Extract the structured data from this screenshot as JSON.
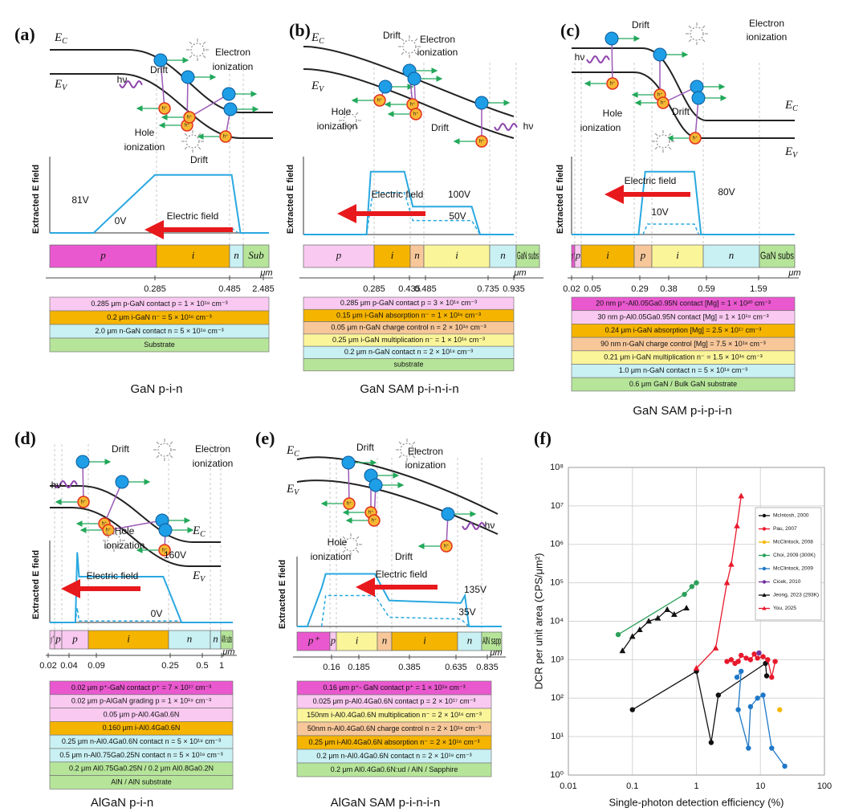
{
  "hole_symbol": "h⁺",
  "panels": [
    {
      "label": "(a)",
      "caption": "GaN p-i-n",
      "band_labels": [
        {
          "main": "E",
          "sub": "C"
        },
        {
          "main": "E",
          "sub": "V"
        }
      ],
      "annotations": [
        "Drift",
        "Electron",
        "ionization",
        "hν",
        "Hole",
        "ionization",
        "Drift"
      ],
      "y_axis_label": "Extracted E field",
      "field_labels": [
        "81V",
        "0V",
        "Electric field"
      ],
      "layers": [
        {
          "label": "p",
          "color": "#e958cf"
        },
        {
          "label": "i",
          "color": "#f5b400"
        },
        {
          "label": "n",
          "color": "#c9f0f3"
        },
        {
          "label": "Sub",
          "color": "#b6e59a"
        }
      ],
      "ticks": [
        "0.285",
        "0.485",
        "2.485"
      ],
      "unit": "μm",
      "rows": [
        {
          "text": "0.285 μm p-GaN contact p = 1 × 10¹⁸ cm⁻³",
          "color": "#f9c9f1"
        },
        {
          "text": "0.2 μm i-GaN n⁻ = 5 × 10¹⁶ cm⁻³",
          "color": "#f5b400"
        },
        {
          "text": "2.0 μm n-GaN contact n = 5 × 10¹⁸ cm⁻³",
          "color": "#c9f0f3"
        },
        {
          "text": "Substrate",
          "color": "#b6e59a"
        }
      ]
    },
    {
      "label": "(b)",
      "caption": "GaN SAM p-i-n-i-n",
      "band_labels": [
        {
          "main": "E",
          "sub": "C"
        },
        {
          "main": "E",
          "sub": "V"
        }
      ],
      "annotations": [
        "Drift",
        "Electron",
        "ionization",
        "hν",
        "Hole",
        "ionization",
        "Drift"
      ],
      "y_axis_label": "Extracted E field",
      "field_labels": [
        "100V",
        "50V",
        "Electric field"
      ],
      "layers": [
        {
          "label": "p",
          "color": "#f9c9f1"
        },
        {
          "label": "i",
          "color": "#f5b400"
        },
        {
          "label": "n",
          "color": "#f7c79a"
        },
        {
          "label": "i",
          "color": "#fbf59a"
        },
        {
          "label": "n",
          "color": "#c9f0f3"
        },
        {
          "label": "GaN subs",
          "color": "#b6e59a"
        }
      ],
      "ticks": [
        "0.285",
        "0.435",
        "0.485",
        "0.735",
        "0.935"
      ],
      "unit": "μm",
      "rows": [
        {
          "text": "0.285 μm p-GaN contact p = 3 × 10¹⁸ cm⁻³",
          "color": "#f9c9f1"
        },
        {
          "text": "0.15 μm i-GaN absorption n⁻ = 1 × 10¹⁶ cm⁻³",
          "color": "#f5b400"
        },
        {
          "text": "0.05 μm n-GaN charge control n = 2 × 10¹⁸ cm⁻³",
          "color": "#f7c79a"
        },
        {
          "text": "0.25 μm i-GaN multiplication n⁻ = 1 × 10¹⁶ cm⁻³",
          "color": "#fbf59a"
        },
        {
          "text": "0.2 μm n-GaN contact n = 2 × 10¹⁸ cm⁻³",
          "color": "#c9f0f3"
        },
        {
          "text": "substrate",
          "color": "#b6e59a"
        }
      ]
    },
    {
      "label": "(c)",
      "caption": "GaN SAM p-i-p-i-n",
      "band_labels": [
        {
          "main": "E",
          "sub": "C"
        },
        {
          "main": "E",
          "sub": "V"
        }
      ],
      "annotations": [
        "Drift",
        "Electron",
        "ionization",
        "hν",
        "Hole",
        "ionization",
        "Drift"
      ],
      "y_axis_label": "Extracted E field",
      "field_labels": [
        "80V",
        "10V",
        "Electric field"
      ],
      "layers": [
        {
          "label": "p⁺",
          "color": "#e958cf"
        },
        {
          "label": "p",
          "color": "#f9c9f1"
        },
        {
          "label": "i",
          "color": "#f5b400"
        },
        {
          "label": "p",
          "color": "#f7c79a"
        },
        {
          "label": "i",
          "color": "#fbf59a"
        },
        {
          "label": "n",
          "color": "#c9f0f3"
        },
        {
          "label": "GaN subs",
          "color": "#b6e59a"
        }
      ],
      "ticks": [
        "0.02",
        "0.05",
        "0.29",
        "0.38",
        "0.59",
        "1.59"
      ],
      "unit": "μm",
      "rows": [
        {
          "text": "20 nm p⁺-Al0.05Ga0.95N contact [Mg] = 1 × 10²⁰ cm⁻³",
          "color": "#e958cf"
        },
        {
          "text": "30 nm p-Al0.05Ga0.95N contact [Mg] = 1 × 10¹⁹ cm⁻³",
          "color": "#f9c9f1"
        },
        {
          "text": "0.24 μm i-GaN absorption [Mg] = 2.5 × 10¹⁷ cm⁻³",
          "color": "#f5b400"
        },
        {
          "text": "90 nm n-GaN charge control [Mg] = 7.5 × 10¹⁸ cm⁻³",
          "color": "#f7c79a"
        },
        {
          "text": "0.21 μm i-GaN multiplication n⁻ = 1.5 × 10¹⁶ cm⁻³",
          "color": "#fbf59a"
        },
        {
          "text": "1.0 μm n-GaN contact n = 5 × 10¹⁸ cm⁻³",
          "color": "#c9f0f3"
        },
        {
          "text": "0.6 μm GaN / Bulk GaN substrate",
          "color": "#b6e59a"
        }
      ]
    },
    {
      "label": "(d)",
      "caption": "AlGaN p-i-n",
      "band_labels": [
        {
          "main": "E",
          "sub": "C"
        },
        {
          "main": "E",
          "sub": "V"
        }
      ],
      "annotations": [
        "Drift",
        "Electron",
        "ionization",
        "hν",
        "Hole",
        "ionization"
      ],
      "y_axis_label": "Extracted E field",
      "field_labels": [
        "160V",
        "0V",
        "Electric field"
      ],
      "layers": [
        {
          "label": "p⁺",
          "color": "#f9c9f1"
        },
        {
          "label": "p",
          "color": "#f9c9f1"
        },
        {
          "label": "p",
          "color": "#f9c9f1"
        },
        {
          "label": "i",
          "color": "#f5b400"
        },
        {
          "label": "n",
          "color": "#c9f0f3"
        },
        {
          "label": "n",
          "color": "#c9f0f3"
        },
        {
          "label": "AlN subs",
          "color": "#b6e59a"
        }
      ],
      "ticks": [
        "0.02",
        "0.04",
        "0.09",
        "0.25",
        "0.5",
        "1"
      ],
      "unit": "μm",
      "rows": [
        {
          "text": "0.02 μm p⁺-GaN contact p⁺ = 7 × 10¹⁷ cm⁻³",
          "color": "#e958cf"
        },
        {
          "text": "0.02 μm p-AlGaN grading p = 1 × 10¹⁹ cm⁻³",
          "color": "#f9c9f1"
        },
        {
          "text": "0.05 μm p-Al0.4Ga0.6N",
          "color": "#f9c9f1"
        },
        {
          "text": "0.160 μm i-Al0.4Ga0.6N",
          "color": "#f5b400"
        },
        {
          "text": "0.25 μm n-Al0.4Ga0.6N contact n = 5 × 10¹⁸ cm⁻³",
          "color": "#c9f0f3"
        },
        {
          "text": "0.5 μm n-Al0.75Ga0.25N contact n = 5 × 10¹⁸ cm⁻³",
          "color": "#c9f0f3"
        },
        {
          "text": "0.2 μm Al0.75Ga0.25N / 0.2 μm Al0.8Ga0.2N",
          "color": "#b6e59a"
        },
        {
          "text": "AlN / AlN substrate",
          "color": "#b6e59a"
        }
      ]
    },
    {
      "label": "(e)",
      "caption": "AlGaN SAM p-i-n-i-n",
      "band_labels": [
        {
          "main": "E",
          "sub": "C"
        },
        {
          "main": "E",
          "sub": "V"
        }
      ],
      "annotations": [
        "Drift",
        "Electron",
        "ionization",
        "hν",
        "Hole",
        "ionization",
        "Drift"
      ],
      "y_axis_label": "Extracted E field",
      "field_labels": [
        "135V",
        "35V",
        "Electric field"
      ],
      "layers": [
        {
          "label": "p⁺",
          "color": "#e958cf"
        },
        {
          "label": "p",
          "color": "#f9c9f1"
        },
        {
          "label": "i",
          "color": "#fbf59a"
        },
        {
          "label": "n",
          "color": "#f7c79a"
        },
        {
          "label": "i",
          "color": "#f5b400"
        },
        {
          "label": "n",
          "color": "#c9f0f3"
        },
        {
          "label": "AlN sapp",
          "color": "#b6e59a"
        }
      ],
      "ticks": [
        "0.16",
        "0.185",
        "0.385",
        "0.635",
        "0.835"
      ],
      "unit": "μm",
      "rows": [
        {
          "text": "0.16 μm p⁺- GaN contact p⁺ = 1 × 10¹⁸ cm⁻³",
          "color": "#e958cf"
        },
        {
          "text": "0.025 μm p-Al0.4Ga0.6N contact p = 2 × 10¹⁷ cm⁻³",
          "color": "#f9c9f1"
        },
        {
          "text": "150nm i-Al0.4Ga0.6N multiplication n⁻ = 2 × 10¹⁶ cm⁻³",
          "color": "#fbf59a"
        },
        {
          "text": "50nm n-Al0.4Ga0.6N charge control n = 2 × 10¹⁸ cm⁻³",
          "color": "#f7c79a"
        },
        {
          "text": "0.25 μm i-Al0.4Ga0.6N absorption n⁻ = 2 × 10¹⁶ cm⁻³",
          "color": "#f5b400"
        },
        {
          "text": "0.2 μm n-Al0.4Ga0.6N contact n = 2 × 10¹⁸ cm⁻³",
          "color": "#c9f0f3"
        },
        {
          "text": "0.2 μm Al0.4Ga0.6N:ud / AlN / Sapphire",
          "color": "#b6e59a"
        }
      ]
    }
  ],
  "chart_data": {
    "type": "scatter",
    "label": "(f)",
    "x_label": "Single-photon detection efficiency (%)",
    "y_label": "DCR per unit area (CPS/μm²)",
    "xlog": true,
    "ylog": true,
    "grid": true,
    "legend": "upper right",
    "xlim": [
      0.01,
      100
    ],
    "xticks": [
      0.01,
      0.1,
      1,
      10,
      100
    ],
    "ylim": [
      1,
      100000000
    ],
    "yticks": [
      {
        "value": 1,
        "label": "10⁰"
      },
      {
        "value": 10,
        "label": "10¹"
      },
      {
        "value": 100,
        "label": "10²"
      },
      {
        "value": 1000,
        "label": "10³"
      },
      {
        "value": 10000,
        "label": "10⁴"
      },
      {
        "value": 100000,
        "label": "10⁵"
      },
      {
        "value": 1000000,
        "label": "10⁶"
      },
      {
        "value": 10000000,
        "label": "10⁷"
      },
      {
        "value": 100000000,
        "label": "10⁸"
      }
    ],
    "series": [
      {
        "name": "McIntosh, 2000",
        "color": "#111111",
        "marker": "circle",
        "x": [
          0.1,
          1,
          1.7,
          2.2,
          12,
          12.5
        ],
        "values": [
          50,
          500,
          7,
          120,
          800,
          380
        ]
      },
      {
        "name": "Pau, 2007",
        "color": "#e8192c",
        "marker": "circle",
        "x": [
          3,
          3.5,
          4,
          4.5,
          5,
          6,
          7,
          8,
          9,
          11,
          13,
          15,
          17
        ],
        "values": [
          900,
          1000,
          800,
          900,
          1300,
          1100,
          1000,
          1400,
          1100,
          1200,
          1000,
          350,
          900
        ]
      },
      {
        "name": "McClintock, 2008",
        "color": "#f5b800",
        "marker": "circle",
        "x": [
          20
        ],
        "values": [
          50
        ]
      },
      {
        "name": "Choi, 2009 (300K)",
        "color": "#2ca05a",
        "marker": "circle",
        "x": [
          0.06,
          0.65,
          0.85,
          1
        ],
        "values": [
          4500,
          50000,
          80000,
          100000
        ]
      },
      {
        "name": "McClintock, 2009",
        "color": "#1f78c8",
        "marker": "circle",
        "x": [
          4.3,
          5,
          4.5,
          6.5,
          7,
          9,
          11,
          15,
          24
        ],
        "values": [
          350,
          500,
          50,
          5,
          60,
          100,
          120,
          5,
          1.7
        ]
      },
      {
        "name": "Cicek, 2010",
        "color": "#7030a0",
        "marker": "circle",
        "x": [
          9.5
        ],
        "values": [
          1500
        ]
      },
      {
        "name": "Jeong, 2023 (293K)",
        "color": "#111111",
        "marker": "triangle",
        "x": [
          0.07,
          0.1,
          0.13,
          0.18,
          0.25,
          0.35,
          0.45,
          0.7
        ],
        "values": [
          1700,
          4000,
          6000,
          10000,
          12000,
          20000,
          15000,
          22000
        ]
      },
      {
        "name": "You, 2025",
        "color": "#e8192c",
        "marker": "triangle",
        "x": [
          1,
          2,
          3,
          3.5,
          4.3,
          5
        ],
        "values": [
          600,
          2000,
          100000,
          300000,
          3000000,
          18000000
        ]
      }
    ]
  }
}
